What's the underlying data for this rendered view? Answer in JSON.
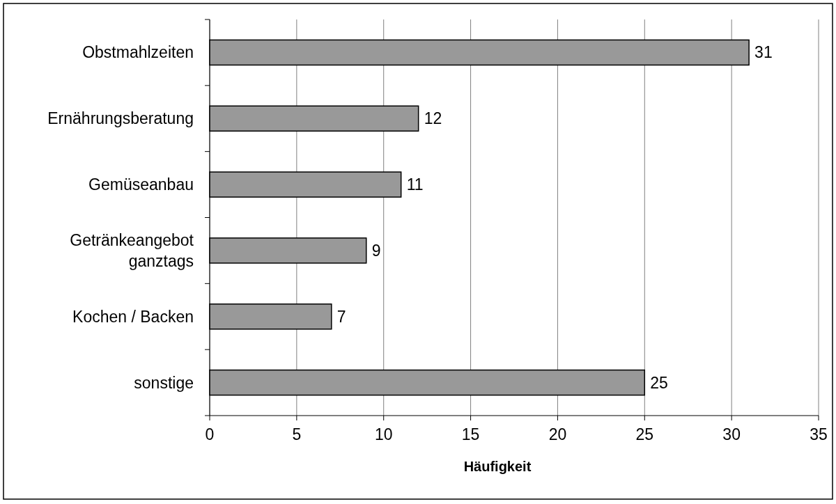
{
  "chart_data": {
    "type": "bar",
    "orientation": "horizontal",
    "xlabel": "Häufigkeit",
    "categories": [
      "Obstmahlzeiten",
      "Ernährungsberatung",
      "Gemüseanbau",
      "Getränkeangebot ganztags",
      "Kochen / Backen",
      "sonstige"
    ],
    "values": [
      31,
      12,
      11,
      9,
      7,
      25
    ],
    "color": "#999999",
    "xlim": [
      0,
      35
    ],
    "xticks": [
      0,
      5,
      10,
      15,
      20,
      25,
      30,
      35
    ],
    "grid": "x",
    "data_labels": true
  }
}
